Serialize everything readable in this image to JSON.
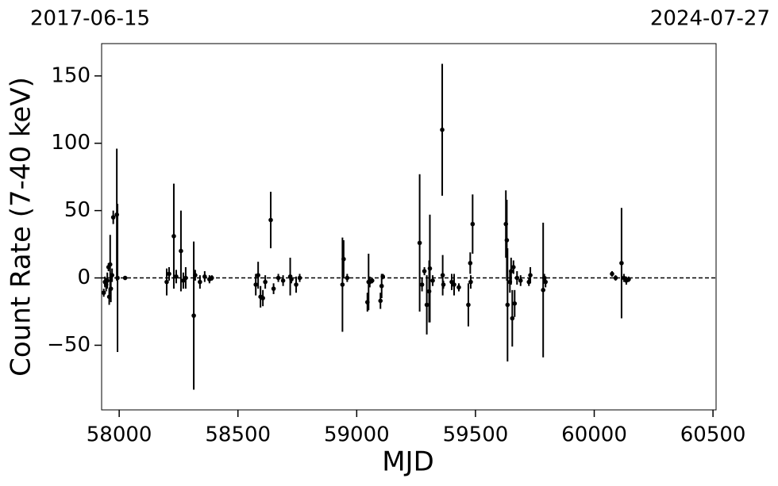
{
  "chart_data": {
    "type": "errorbar-scatter",
    "annotations": [
      "2017-06-15",
      "2024-07-27"
    ],
    "x_label": "MJD",
    "y_label": "Count Rate (7-40 keV)",
    "color": "#000000",
    "x": [
      57935,
      57940,
      57945,
      57950,
      57955,
      57958,
      57962,
      57965,
      57970,
      57975,
      57990,
      57993,
      58025,
      58200,
      58210,
      58230,
      58240,
      58260,
      58270,
      58280,
      58314,
      58320,
      58340,
      58360,
      58380,
      58390,
      58575,
      58585,
      58595,
      58605,
      58615,
      58638,
      58650,
      58670,
      58690,
      58720,
      58725,
      58745,
      58760,
      58940,
      58945,
      58960,
      59045,
      59050,
      59055,
      59065,
      59100,
      59105,
      59110,
      59265,
      59275,
      59285,
      59295,
      59305,
      59308,
      59320,
      59360,
      59362,
      59365,
      59400,
      59410,
      59430,
      59470,
      59478,
      59480,
      59488,
      59628,
      59632,
      59635,
      59645,
      59650,
      59655,
      59660,
      59665,
      59675,
      59690,
      59725,
      59731,
      59785,
      59790,
      59795,
      60075,
      60090,
      60115,
      60125,
      60135,
      60145
    ],
    "values": [
      -11,
      -3,
      -5,
      -2,
      8,
      -14,
      10,
      -8,
      2,
      45,
      47,
      0,
      0,
      -3,
      3,
      31,
      1,
      20,
      -2,
      0,
      -28,
      2,
      -3,
      1,
      -1,
      0,
      -5,
      2,
      -14,
      -15,
      -3,
      43,
      -8,
      0,
      -2,
      1,
      -1,
      -5,
      0,
      -5,
      14,
      0,
      -18,
      -3,
      -3,
      -2,
      -17,
      -6,
      1,
      26,
      -5,
      5,
      -20,
      -10,
      7,
      -2,
      110,
      2,
      -5,
      -3,
      -5,
      -7,
      -20,
      11,
      -3,
      40,
      40,
      28,
      -20,
      -3,
      5,
      -30,
      8,
      -19,
      0,
      -2,
      -3,
      2,
      -9,
      0,
      -3,
      3,
      0,
      11,
      0,
      -2,
      -1
    ],
    "errors": [
      3,
      4,
      5,
      6,
      3,
      6,
      22,
      10,
      5,
      5,
      49,
      55,
      1,
      10,
      5,
      39,
      5,
      30,
      6,
      8,
      55,
      4,
      5,
      4,
      3,
      2,
      8,
      10,
      8,
      6,
      5,
      21,
      4,
      3,
      4,
      14,
      3,
      6,
      3,
      35,
      14,
      3,
      7,
      21,
      4,
      2,
      6,
      9,
      2,
      51,
      5,
      3,
      22,
      23,
      40,
      4,
      49,
      15,
      3,
      6,
      8,
      3,
      16,
      8,
      5,
      22,
      25,
      30,
      42,
      8,
      10,
      21,
      5,
      10,
      5,
      4,
      3,
      6,
      50,
      3,
      4,
      2,
      2,
      41,
      3,
      3,
      2
    ],
    "reference_line": {
      "y": 0,
      "style": "dashed"
    },
    "xlim": [
      57926,
      60513
    ],
    "ylim": [
      -98,
      174
    ],
    "xticks": [
      58000,
      58500,
      59000,
      59500,
      60000,
      60500
    ],
    "yticks": [
      {
        "value": -50,
        "label": "−50"
      },
      0,
      50,
      100,
      150
    ]
  }
}
